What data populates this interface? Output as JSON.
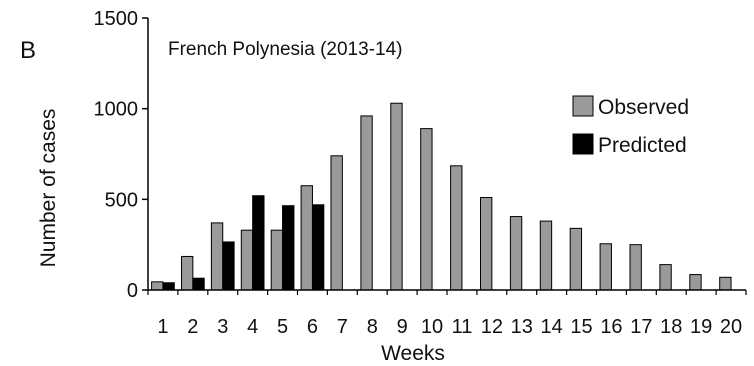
{
  "chart_data": {
    "panel_label": "B",
    "type": "bar",
    "title": "French Polynesia (2013-14)",
    "xlabel": "Weeks",
    "ylabel": "Number of cases",
    "ylim": [
      0,
      1500
    ],
    "yticks": [
      0,
      500,
      1000,
      1500
    ],
    "grid": false,
    "legend_position": "right",
    "categories": [
      "1",
      "2",
      "3",
      "4",
      "5",
      "6",
      "7",
      "8",
      "9",
      "10",
      "11",
      "12",
      "13",
      "14",
      "15",
      "16",
      "17",
      "18",
      "19",
      "20"
    ],
    "series": [
      {
        "name": "Observed",
        "color": "#9a9a9a",
        "values": [
          45,
          185,
          370,
          330,
          330,
          575,
          740,
          960,
          1030,
          890,
          685,
          510,
          405,
          380,
          340,
          255,
          250,
          140,
          85,
          70
        ]
      },
      {
        "name": "Predicted",
        "color": "#000000",
        "values": [
          40,
          65,
          265,
          520,
          465,
          470,
          null,
          null,
          null,
          null,
          null,
          null,
          null,
          null,
          null,
          null,
          null,
          null,
          null,
          null
        ]
      }
    ]
  }
}
